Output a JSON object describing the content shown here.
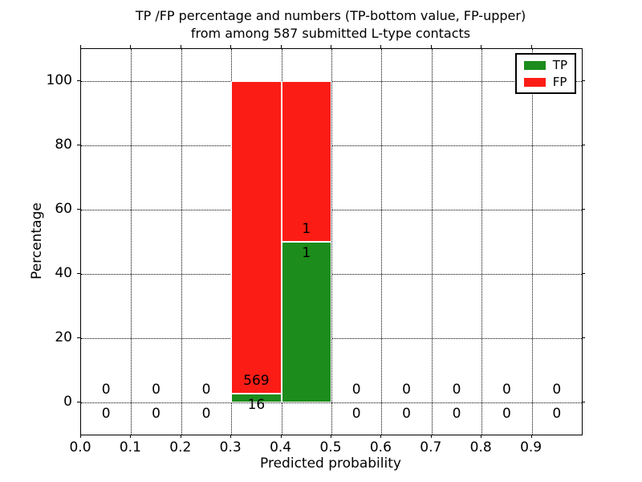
{
  "chart_data": {
    "type": "bar",
    "stacked": true,
    "title_lines": [
      "TP /FP percentage and numbers (TP-bottom value, FP-upper)",
      "from among 587 submitted L-type contacts"
    ],
    "title": "TP /FP percentage and numbers (TP-bottom value, FP-upper) from among 587 submitted L-type contacts",
    "xlabel": "Predicted probability",
    "ylabel": "Percentage",
    "xlim": [
      0.0,
      1.0
    ],
    "ylim": [
      -10,
      110
    ],
    "grid": {
      "style": "dotted",
      "color": "#000000"
    },
    "x_ticks": [
      {
        "value": 0.0,
        "label": "0.0"
      },
      {
        "value": 0.1,
        "label": "0.1"
      },
      {
        "value": 0.2,
        "label": "0.2"
      },
      {
        "value": 0.3,
        "label": "0.3"
      },
      {
        "value": 0.4,
        "label": "0.4"
      },
      {
        "value": 0.5,
        "label": "0.5"
      },
      {
        "value": 0.6,
        "label": "0.6"
      },
      {
        "value": 0.7,
        "label": "0.7"
      },
      {
        "value": 0.8,
        "label": "0.8"
      },
      {
        "value": 0.9,
        "label": "0.9"
      }
    ],
    "y_ticks": [
      {
        "value": 0,
        "label": "0"
      },
      {
        "value": 20,
        "label": "20"
      },
      {
        "value": 40,
        "label": "40"
      },
      {
        "value": 60,
        "label": "60"
      },
      {
        "value": 80,
        "label": "80"
      },
      {
        "value": 100,
        "label": "100"
      }
    ],
    "bins": {
      "edges": [
        0.0,
        0.1,
        0.2,
        0.3,
        0.4,
        0.5,
        0.6,
        0.7,
        0.8,
        0.9,
        1.0
      ],
      "centers": [
        0.05,
        0.15,
        0.25,
        0.35,
        0.45,
        0.55,
        0.65,
        0.75,
        0.85,
        0.95
      ]
    },
    "series": [
      {
        "name": "TP",
        "color": "#1c8c1c",
        "counts": [
          0,
          0,
          0,
          16,
          1,
          0,
          0,
          0,
          0,
          0
        ]
      },
      {
        "name": "FP",
        "color": "#fb1d15",
        "counts": [
          0,
          0,
          0,
          569,
          1,
          0,
          0,
          0,
          0,
          0
        ]
      }
    ],
    "bars": [
      {
        "bin": [
          0.3,
          0.4
        ],
        "tp_count": 16,
        "fp_count": 569,
        "tp_pct": 2.74,
        "fp_pct": 97.26
      },
      {
        "bin": [
          0.4,
          0.5
        ],
        "tp_count": 1,
        "fp_count": 1,
        "tp_pct": 50.0,
        "fp_pct": 50.0
      }
    ],
    "total_contacts": 587,
    "bar_edge_color": "#ffffff",
    "legend": {
      "position": "upper-right",
      "entries": [
        {
          "label": "TP",
          "color": "#1c8c1c"
        },
        {
          "label": "FP",
          "color": "#fb1d15"
        }
      ]
    }
  }
}
